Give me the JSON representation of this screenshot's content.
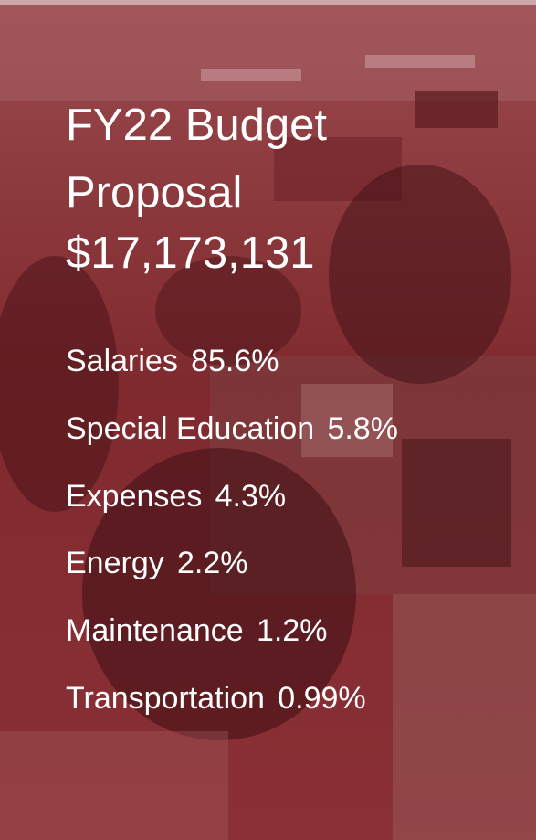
{
  "title": [
    "FY22 Budget",
    "Proposal",
    "$17,173,131"
  ],
  "items": [
    {
      "name": "Salaries",
      "share": "85.6%"
    },
    {
      "name": "Special Education",
      "share": "5.8%"
    },
    {
      "name": "Expenses",
      "share": "4.3%"
    },
    {
      "name": "Energy",
      "share": "2.2%"
    },
    {
      "name": "Maintenance",
      "share": "1.2%"
    },
    {
      "name": "Transportation",
      "share": "0.99%"
    }
  ]
}
